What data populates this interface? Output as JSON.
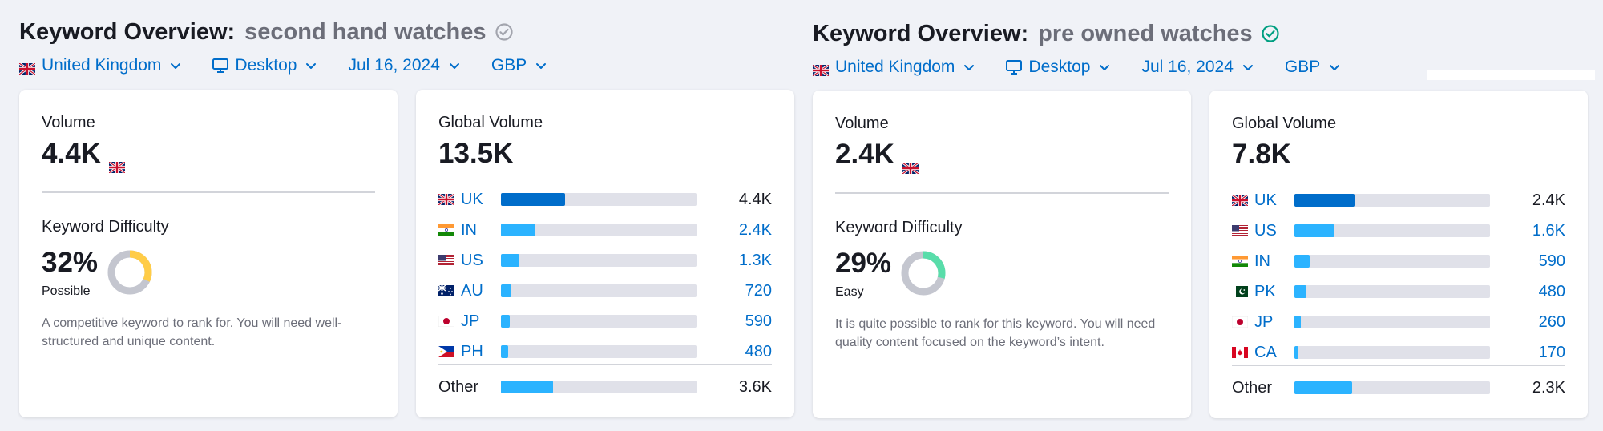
{
  "panels": [
    {
      "title_label": "Keyword Overview:",
      "keyword": "second hand watches",
      "keyword_status": "unchecked",
      "filters": {
        "country": "United Kingdom",
        "device": "Desktop",
        "date": "Jul 16, 2024",
        "currency": "GBP"
      },
      "volume": {
        "label": "Volume",
        "value": "4.4K"
      },
      "kd": {
        "label": "Keyword Difficulty",
        "value": "32%",
        "percent": 32,
        "level": "Possible",
        "color": "#ffcc47",
        "description": "A competitive keyword to rank for. You will need well-structured and unique content."
      },
      "global": {
        "label": "Global Volume",
        "value": "13.5K",
        "countries": [
          {
            "code": "UK",
            "flag": "gb",
            "value": "4.4K",
            "share": 0.326
          },
          {
            "code": "IN",
            "flag": "in",
            "value": "2.4K",
            "share": 0.178
          },
          {
            "code": "US",
            "flag": "us",
            "value": "1.3K",
            "share": 0.096
          },
          {
            "code": "AU",
            "flag": "au",
            "value": "720",
            "share": 0.053
          },
          {
            "code": "JP",
            "flag": "jp",
            "value": "590",
            "share": 0.044
          },
          {
            "code": "PH",
            "flag": "ph",
            "value": "480",
            "share": 0.036
          }
        ],
        "other": {
          "label": "Other",
          "value": "3.6K",
          "share": 0.267
        }
      }
    },
    {
      "title_label": "Keyword Overview:",
      "keyword": "pre owned watches",
      "keyword_status": "checked",
      "filters": {
        "country": "United Kingdom",
        "device": "Desktop",
        "date": "Jul 16, 2024",
        "currency": "GBP"
      },
      "volume": {
        "label": "Volume",
        "value": "2.4K"
      },
      "kd": {
        "label": "Keyword Difficulty",
        "value": "29%",
        "percent": 29,
        "level": "Easy",
        "color": "#59ddaa",
        "description": "It is quite possible to rank for this keyword. You will need quality content focused on the keyword’s intent."
      },
      "global": {
        "label": "Global Volume",
        "value": "7.8K",
        "countries": [
          {
            "code": "UK",
            "flag": "gb",
            "value": "2.4K",
            "share": 0.308
          },
          {
            "code": "US",
            "flag": "us",
            "value": "1.6K",
            "share": 0.205
          },
          {
            "code": "IN",
            "flag": "in",
            "value": "590",
            "share": 0.076
          },
          {
            "code": "PK",
            "flag": "pk",
            "value": "480",
            "share": 0.062
          },
          {
            "code": "JP",
            "flag": "jp",
            "value": "260",
            "share": 0.033
          },
          {
            "code": "CA",
            "flag": "ca",
            "value": "170",
            "share": 0.022
          }
        ],
        "other": {
          "label": "Other",
          "value": "2.3K",
          "share": 0.295
        }
      }
    }
  ],
  "colors": {
    "link": "#006dca",
    "bar_uk": "#006dca",
    "bar": "#2bb3ff",
    "track": "#e0e1e9",
    "check_ok": "#009f81",
    "check_muted": "#a3a5ae"
  }
}
